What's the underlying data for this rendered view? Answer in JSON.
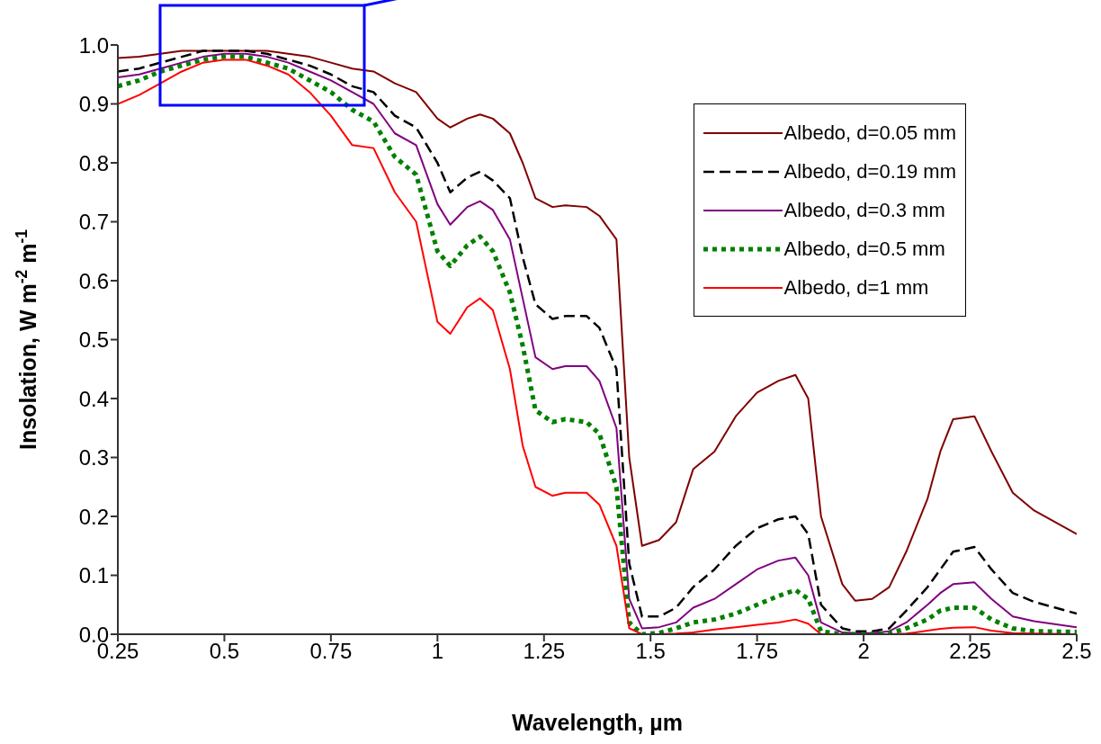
{
  "chart_data": {
    "type": "line",
    "xlabel": "Wavelength, µm",
    "ylabel": "Insolation, W m$^{-2}$ m$^{-1}$",
    "x": [
      0.25,
      0.3,
      0.35,
      0.4,
      0.45,
      0.5,
      0.55,
      0.6,
      0.65,
      0.7,
      0.75,
      0.8,
      0.85,
      0.9,
      0.95,
      1.0,
      1.03,
      1.07,
      1.1,
      1.13,
      1.17,
      1.2,
      1.23,
      1.27,
      1.3,
      1.35,
      1.38,
      1.42,
      1.45,
      1.48,
      1.52,
      1.56,
      1.6,
      1.65,
      1.7,
      1.75,
      1.8,
      1.84,
      1.87,
      1.9,
      1.95,
      1.98,
      2.02,
      2.06,
      2.1,
      2.15,
      2.18,
      2.21,
      2.26,
      2.3,
      2.35,
      2.4,
      2.5
    ],
    "series": [
      {
        "name": "Albedo, d=0.05 mm",
        "color": "#800000",
        "line_style": "solid",
        "values": [
          0.978,
          0.98,
          0.985,
          0.99,
          0.99,
          0.99,
          0.99,
          0.99,
          0.985,
          0.98,
          0.97,
          0.96,
          0.955,
          0.935,
          0.92,
          0.875,
          0.86,
          0.875,
          0.882,
          0.875,
          0.85,
          0.8,
          0.74,
          0.725,
          0.728,
          0.725,
          0.71,
          0.67,
          0.3,
          0.15,
          0.16,
          0.19,
          0.28,
          0.31,
          0.37,
          0.41,
          0.43,
          0.44,
          0.4,
          0.2,
          0.085,
          0.057,
          0.06,
          0.08,
          0.14,
          0.23,
          0.31,
          0.365,
          0.37,
          0.31,
          0.24,
          0.21,
          0.17
        ]
      },
      {
        "name": "Albedo, d=0.19 mm",
        "color": "#000000",
        "line_style": "dashed",
        "values": [
          0.955,
          0.96,
          0.97,
          0.98,
          0.99,
          0.99,
          0.99,
          0.985,
          0.975,
          0.965,
          0.95,
          0.93,
          0.92,
          0.88,
          0.86,
          0.8,
          0.75,
          0.775,
          0.785,
          0.77,
          0.74,
          0.64,
          0.56,
          0.535,
          0.54,
          0.54,
          0.52,
          0.45,
          0.12,
          0.03,
          0.03,
          0.045,
          0.08,
          0.11,
          0.15,
          0.18,
          0.195,
          0.2,
          0.17,
          0.05,
          0.01,
          0.005,
          0.005,
          0.01,
          0.04,
          0.08,
          0.11,
          0.14,
          0.148,
          0.11,
          0.07,
          0.055,
          0.035
        ]
      },
      {
        "name": "Albedo, d=0.3 mm",
        "color": "#800080",
        "line_style": "solid",
        "values": [
          0.945,
          0.95,
          0.96,
          0.97,
          0.98,
          0.985,
          0.985,
          0.98,
          0.97,
          0.955,
          0.94,
          0.92,
          0.9,
          0.85,
          0.83,
          0.73,
          0.695,
          0.725,
          0.735,
          0.72,
          0.67,
          0.57,
          0.47,
          0.45,
          0.455,
          0.455,
          0.43,
          0.35,
          0.06,
          0.01,
          0.012,
          0.02,
          0.045,
          0.06,
          0.085,
          0.11,
          0.125,
          0.13,
          0.1,
          0.02,
          0.003,
          0.002,
          0.002,
          0.005,
          0.02,
          0.05,
          0.07,
          0.085,
          0.088,
          0.06,
          0.03,
          0.022,
          0.012
        ]
      },
      {
        "name": "Albedo, d=0.5 mm",
        "color": "#008000",
        "line_style": "dotted",
        "values": [
          0.93,
          0.94,
          0.955,
          0.965,
          0.975,
          0.98,
          0.98,
          0.97,
          0.96,
          0.94,
          0.92,
          0.89,
          0.87,
          0.81,
          0.78,
          0.65,
          0.625,
          0.66,
          0.675,
          0.65,
          0.58,
          0.49,
          0.38,
          0.36,
          0.365,
          0.36,
          0.34,
          0.25,
          0.02,
          0.0,
          0.002,
          0.01,
          0.02,
          0.025,
          0.035,
          0.05,
          0.065,
          0.075,
          0.06,
          0.005,
          0.0,
          0.0,
          0.0,
          0.001,
          0.01,
          0.025,
          0.04,
          0.045,
          0.045,
          0.025,
          0.01,
          0.005,
          0.004
        ]
      },
      {
        "name": "Albedo, d=1 mm",
        "color": "#ff0000",
        "line_style": "solid",
        "values": [
          0.9,
          0.915,
          0.935,
          0.955,
          0.97,
          0.975,
          0.975,
          0.965,
          0.95,
          0.92,
          0.88,
          0.83,
          0.825,
          0.75,
          0.7,
          0.53,
          0.51,
          0.555,
          0.57,
          0.55,
          0.45,
          0.32,
          0.25,
          0.235,
          0.24,
          0.24,
          0.22,
          0.15,
          0.01,
          0.0,
          0.0,
          0.001,
          0.003,
          0.008,
          0.012,
          0.016,
          0.02,
          0.025,
          0.018,
          0.0,
          0.0,
          0.0,
          0.0,
          0.0,
          0.001,
          0.006,
          0.009,
          0.011,
          0.012,
          0.006,
          0.002,
          0.001,
          0.0
        ]
      }
    ],
    "xlim": [
      0.25,
      2.5
    ],
    "xticks": [
      0.25,
      0.5,
      0.75,
      1,
      1.25,
      1.5,
      1.75,
      2,
      2.25,
      2.5
    ],
    "ylim": [
      0,
      1
    ],
    "yticks": [
      {
        "value": 0,
        "label": "0.0"
      },
      {
        "value": 0.1,
        "label": "0.1"
      },
      {
        "value": 0.2,
        "label": "0.2"
      },
      {
        "value": 0.3,
        "label": "0.3"
      },
      {
        "value": 0.4,
        "label": "0.4"
      },
      {
        "value": 0.5,
        "label": "0.5"
      },
      {
        "value": 0.6,
        "label": "0.6"
      },
      {
        "value": 0.7,
        "label": "0.7"
      },
      {
        "value": 0.8,
        "label": "0.8"
      },
      {
        "value": 0.9,
        "label": "0.9"
      },
      {
        "value": 1,
        "label": "1.0"
      }
    ],
    "grid": false,
    "legend": "top right",
    "marker": "none"
  }
}
